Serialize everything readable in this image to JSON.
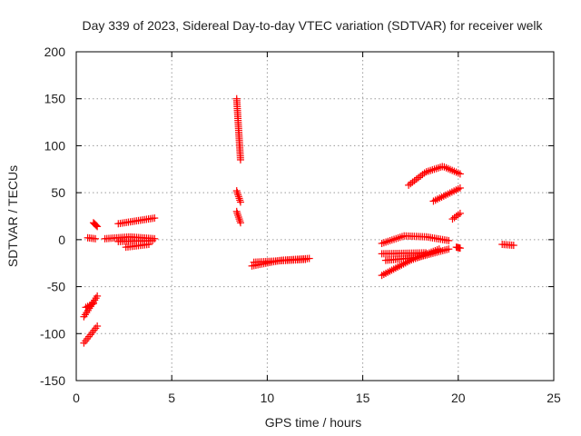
{
  "chart_data": {
    "type": "scatter",
    "title": "Day 339 of 2023, Sidereal Day-to-day VTEC variation (SDTVAR) for receiver welk",
    "xlabel": "GPS time / hours",
    "ylabel": "SDTVAR / TECUs",
    "xlim": [
      0,
      25
    ],
    "ylim": [
      -150,
      200
    ],
    "xticks": [
      0,
      5,
      10,
      15,
      20,
      25
    ],
    "yticks": [
      -150,
      -100,
      -50,
      0,
      50,
      100,
      150,
      200
    ],
    "xtick_labels": [
      "0",
      "5",
      "10",
      "15",
      "20",
      "25"
    ],
    "ytick_labels": [
      "-150",
      "-100",
      "-50",
      "0",
      "50",
      "100",
      "150",
      "200"
    ],
    "grid": true,
    "marker": "plus",
    "color": "#ff0000",
    "tracks": [
      {
        "x0": 0.4,
        "x1": 1.1,
        "y": [
          -110,
          -92
        ]
      },
      {
        "x0": 0.4,
        "x1": 1.1,
        "y": [
          -82,
          -60
        ]
      },
      {
        "x0": 0.5,
        "x1": 0.9,
        "y": [
          -72,
          -68
        ]
      },
      {
        "x0": 0.6,
        "x1": 1.0,
        "y": [
          2,
          1
        ]
      },
      {
        "x0": 0.9,
        "x1": 1.1,
        "y": [
          18,
          14
        ]
      },
      {
        "x0": 1.5,
        "x1": 4.1,
        "y": [
          1,
          3,
          1
        ]
      },
      {
        "x0": 2.2,
        "x1": 4.0,
        "y": [
          -2,
          -1
        ]
      },
      {
        "x0": 2.6,
        "x1": 3.8,
        "y": [
          -8,
          -5
        ]
      },
      {
        "x0": 2.2,
        "x1": 4.1,
        "y": [
          17,
          23
        ]
      },
      {
        "x0": 8.4,
        "x1": 8.6,
        "y": [
          150,
          85
        ]
      },
      {
        "x0": 8.4,
        "x1": 8.6,
        "y": [
          52,
          40
        ]
      },
      {
        "x0": 8.4,
        "x1": 8.6,
        "y": [
          30,
          18
        ]
      },
      {
        "x0": 9.2,
        "x1": 12.2,
        "y": [
          -28,
          -22,
          -20
        ]
      },
      {
        "x0": 9.3,
        "x1": 12.0,
        "y": [
          -24,
          -21
        ]
      },
      {
        "x0": 16.0,
        "x1": 19.5,
        "y": [
          -4,
          4,
          3,
          -1
        ]
      },
      {
        "x0": 16.0,
        "x1": 18.3,
        "y": [
          -15,
          -14
        ]
      },
      {
        "x0": 16.2,
        "x1": 19.5,
        "y": [
          -22,
          -19,
          -10
        ]
      },
      {
        "x0": 16.0,
        "x1": 19.0,
        "y": [
          -38,
          -22,
          -10
        ]
      },
      {
        "x0": 17.4,
        "x1": 20.1,
        "y": [
          58,
          72,
          78,
          70
        ]
      },
      {
        "x0": 18.7,
        "x1": 20.1,
        "y": [
          41,
          48,
          55
        ]
      },
      {
        "x0": 19.7,
        "x1": 20.1,
        "y": [
          22,
          28
        ]
      },
      {
        "x0": 19.9,
        "x1": 20.1,
        "y": [
          -8,
          -9
        ]
      },
      {
        "x0": 22.3,
        "x1": 22.9,
        "y": [
          -5,
          -6
        ]
      }
    ]
  }
}
